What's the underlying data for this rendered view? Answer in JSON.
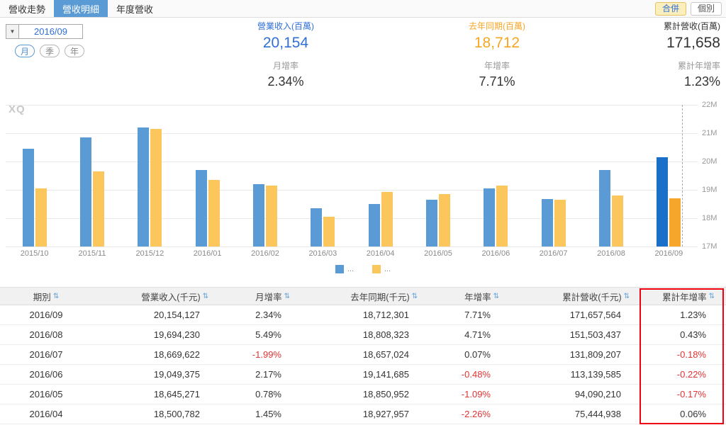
{
  "topbar": {
    "tabs": [
      {
        "label": "營收走勢",
        "active": false
      },
      {
        "label": "營收明細",
        "active": true
      },
      {
        "label": "年度營收",
        "active": false
      }
    ],
    "mode_buttons": [
      {
        "label": "合併",
        "active": true
      },
      {
        "label": "個別",
        "active": false
      }
    ]
  },
  "controls": {
    "period_value": "2016/09",
    "freq_buttons": [
      {
        "label": "月",
        "active": true
      },
      {
        "label": "季",
        "active": false
      },
      {
        "label": "年",
        "active": false
      }
    ],
    "stats": [
      {
        "label": "營業收入(百萬)",
        "value": "20,154",
        "color": "#2f6fd6",
        "sub_label": "月增率",
        "sub_value": "2.34%"
      },
      {
        "label": "去年同期(百萬)",
        "value": "18,712",
        "color": "#f5a623",
        "sub_label": "年增率",
        "sub_value": "7.71%"
      },
      {
        "label": "累計營收(百萬)",
        "value": "171,658",
        "color": "#333333",
        "sub_label": "累計年增率",
        "sub_value": "1.23%"
      }
    ]
  },
  "icons": {
    "dropdown": "▼",
    "sort": "⇅"
  },
  "chart_data": {
    "type": "bar",
    "watermark": "XQ",
    "categories": [
      "2015/10",
      "2015/11",
      "2015/12",
      "2016/01",
      "2016/02",
      "2016/03",
      "2016/04",
      "2016/05",
      "2016/06",
      "2016/07",
      "2016/08",
      "2016/09"
    ],
    "series": [
      {
        "name": "營業收入",
        "color": "#5b9bd5",
        "highlight_color": "#1a6fc9",
        "values": [
          20.45,
          20.85,
          21.2,
          19.7,
          19.2,
          18.35,
          18.5,
          18.65,
          19.05,
          18.67,
          19.69,
          20.15
        ]
      },
      {
        "name": "去年同期",
        "color": "#fbc75d",
        "highlight_color": "#f6a62b",
        "values": [
          19.05,
          19.65,
          21.15,
          19.35,
          19.15,
          18.05,
          18.93,
          18.85,
          19.14,
          18.66,
          18.81,
          18.71
        ]
      }
    ],
    "unit": "M",
    "ylim": [
      17,
      22
    ],
    "yticks": [
      17,
      18,
      19,
      20,
      21,
      22
    ],
    "legend": [
      "...",
      "..."
    ],
    "highlight_index": 11,
    "grid": true,
    "legend_position": "bottom"
  },
  "table": {
    "headers": [
      "期別",
      "營業收入(千元)",
      "月增率",
      "去年同期(千元)",
      "年增率",
      "累計營收(千元)",
      "累計年增率"
    ],
    "rows": [
      [
        "2016/09",
        "20,154,127",
        "2.34%",
        "18,712,301",
        "7.71%",
        "171,657,564",
        "1.23%"
      ],
      [
        "2016/08",
        "19,694,230",
        "5.49%",
        "18,808,323",
        "4.71%",
        "151,503,437",
        "0.43%"
      ],
      [
        "2016/07",
        "18,669,622",
        "-1.99%",
        "18,657,024",
        "0.07%",
        "131,809,207",
        "-0.18%"
      ],
      [
        "2016/06",
        "19,049,375",
        "2.17%",
        "19,141,685",
        "-0.48%",
        "113,139,585",
        "-0.22%"
      ],
      [
        "2016/05",
        "18,645,271",
        "0.78%",
        "18,850,952",
        "-1.09%",
        "94,090,210",
        "-0.17%"
      ],
      [
        "2016/04",
        "18,500,782",
        "1.45%",
        "18,927,957",
        "-2.26%",
        "75,444,938",
        "0.06%"
      ]
    ],
    "negative_color": "#e03333",
    "highlight_column": 6
  }
}
